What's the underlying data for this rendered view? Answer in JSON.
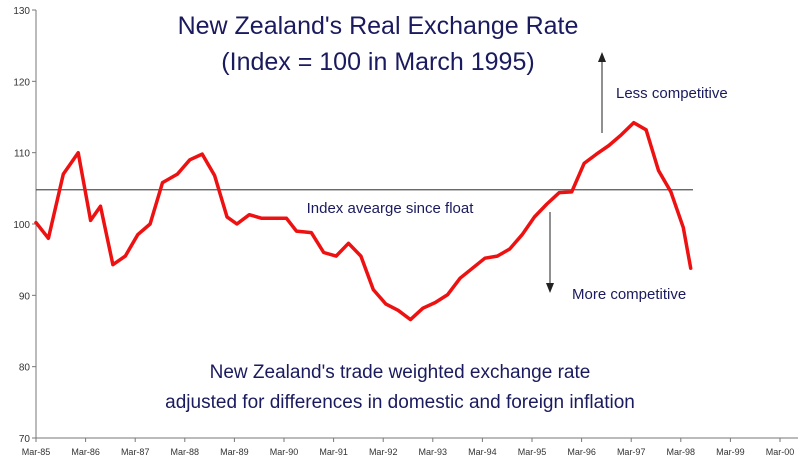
{
  "chart_data": {
    "type": "line",
    "title": "New Zealand's Real Exchange Rate",
    "subtitle": "(Index = 100 in March 1995)",
    "ylim": [
      70,
      130
    ],
    "y_ticks": [
      "130",
      "120",
      "110",
      "100",
      "90",
      "80",
      "70"
    ],
    "x_tick_labels": [
      "Mar-85",
      "Mar-86",
      "Mar-87",
      "Mar-88",
      "Mar-89",
      "Mar-90",
      "Mar-91",
      "Mar-92",
      "Mar-93",
      "Mar-94",
      "Mar-95",
      "Mar-96",
      "Mar-97",
      "Mar-98",
      "Mar-99",
      "Mar-00"
    ],
    "x_start_year": 1985.0,
    "x_end_year": 2000.0,
    "grid": false,
    "series": [
      {
        "color": "#ee1111",
        "points": [
          [
            1985.0,
            100.2
          ],
          [
            1985.25,
            98.0
          ],
          [
            1985.55,
            107.0
          ],
          [
            1985.85,
            110.0
          ],
          [
            1986.1,
            100.5
          ],
          [
            1986.3,
            102.5
          ],
          [
            1986.55,
            94.3
          ],
          [
            1986.8,
            95.5
          ],
          [
            1987.05,
            98.5
          ],
          [
            1987.3,
            100.0
          ],
          [
            1987.55,
            105.8
          ],
          [
            1987.85,
            107.0
          ],
          [
            1988.1,
            109.0
          ],
          [
            1988.35,
            109.8
          ],
          [
            1988.6,
            106.8
          ],
          [
            1988.85,
            101.0
          ],
          [
            1989.05,
            100.0
          ],
          [
            1989.3,
            101.3
          ],
          [
            1989.55,
            100.8
          ],
          [
            1989.85,
            100.8
          ],
          [
            1990.05,
            100.8
          ],
          [
            1990.25,
            99.0
          ],
          [
            1990.55,
            98.8
          ],
          [
            1990.8,
            96.0
          ],
          [
            1991.05,
            95.5
          ],
          [
            1991.3,
            97.3
          ],
          [
            1991.55,
            95.5
          ],
          [
            1991.8,
            90.8
          ],
          [
            1992.05,
            88.8
          ],
          [
            1992.3,
            87.9
          ],
          [
            1992.55,
            86.6
          ],
          [
            1992.8,
            88.2
          ],
          [
            1993.05,
            89.0
          ],
          [
            1993.3,
            90.1
          ],
          [
            1993.55,
            92.4
          ],
          [
            1993.8,
            93.8
          ],
          [
            1994.05,
            95.2
          ],
          [
            1994.3,
            95.5
          ],
          [
            1994.55,
            96.5
          ],
          [
            1994.8,
            98.5
          ],
          [
            1995.05,
            101.0
          ],
          [
            1995.3,
            102.8
          ],
          [
            1995.55,
            104.4
          ],
          [
            1995.8,
            104.5
          ],
          [
            1996.05,
            108.5
          ],
          [
            1996.3,
            109.8
          ],
          [
            1996.55,
            111.0
          ],
          [
            1996.8,
            112.5
          ],
          [
            1997.05,
            114.2
          ],
          [
            1997.3,
            113.2
          ],
          [
            1997.55,
            107.5
          ],
          [
            1997.8,
            104.5
          ],
          [
            1998.05,
            99.5
          ],
          [
            1998.2,
            93.8
          ]
        ]
      }
    ],
    "reference_line": {
      "value": 104.8,
      "label": "Index avearge since float",
      "color": "#555555"
    },
    "annotations": {
      "less": "Less competitive",
      "more": "More competitive",
      "caption_line1": "New Zealand's trade weighted exchange rate",
      "caption_line2": "adjusted for differences in domestic and foreign inflation"
    }
  }
}
